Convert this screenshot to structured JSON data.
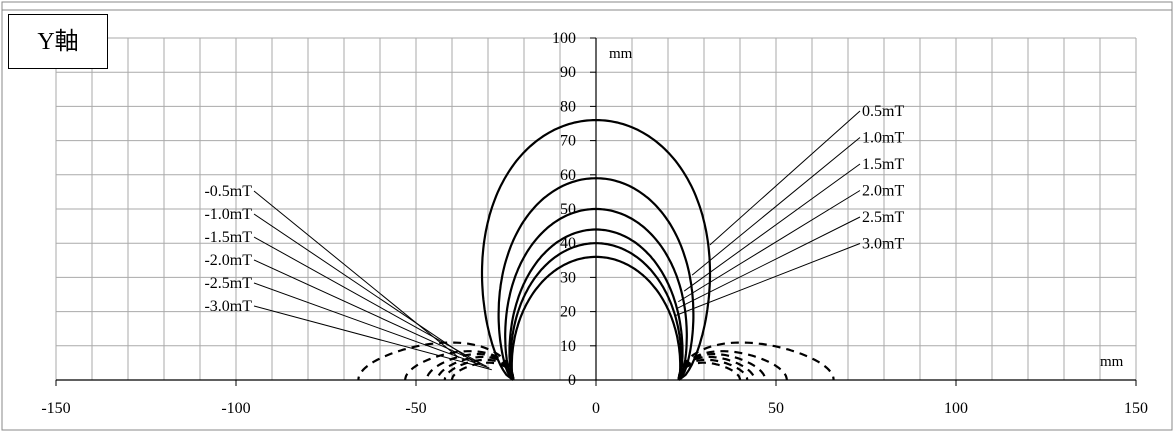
{
  "chart_data": {
    "type": "line",
    "axis_badge": "Y軸",
    "x_unit": "mm",
    "y_unit": "mm",
    "xlim": [
      -150,
      150
    ],
    "ylim": [
      0,
      100
    ],
    "x_ticks": [
      -150,
      -100,
      -50,
      0,
      50,
      100,
      150
    ],
    "y_ticks": [
      0,
      10,
      20,
      30,
      40,
      50,
      60,
      70,
      80,
      90,
      100
    ],
    "grid": true,
    "positive_labels": [
      "0.5mT",
      "1.0mT",
      "1.5mT",
      "2.0mT",
      "2.5mT",
      "3.0mT"
    ],
    "negative_labels": [
      "-0.5mT",
      "-1.0mT",
      "-1.5mT",
      "-2.0mT",
      "-2.5mT",
      "-3.0mT"
    ],
    "series": [
      {
        "name": "0.5mT",
        "style": "solid",
        "x_left": -23,
        "x_right": 23,
        "peak_y": 76,
        "half_width": 43
      },
      {
        "name": "1.0mT",
        "style": "solid",
        "x_left": -23,
        "x_right": 23,
        "peak_y": 59,
        "half_width": 34
      },
      {
        "name": "1.5mT",
        "style": "solid",
        "x_left": -23,
        "x_right": 23,
        "peak_y": 50,
        "half_width": 30
      },
      {
        "name": "2.0mT",
        "style": "solid",
        "x_left": -23,
        "x_right": 23,
        "peak_y": 44,
        "half_width": 27
      },
      {
        "name": "2.5mT",
        "style": "solid",
        "x_left": -23,
        "x_right": 23,
        "peak_y": 40,
        "half_width": 26
      },
      {
        "name": "3.0mT",
        "style": "solid",
        "x_left": -23,
        "x_right": 23,
        "peak_y": 36,
        "half_width": 25
      },
      {
        "name": "-0.5mT",
        "style": "dashed",
        "x_outer": 66,
        "x_inner": 23,
        "peak_y": 13
      },
      {
        "name": "-1.0mT",
        "style": "dashed",
        "x_outer": 53,
        "x_inner": 23,
        "peak_y": 10
      },
      {
        "name": "-1.5mT",
        "style": "dashed",
        "x_outer": 47,
        "x_inner": 23,
        "peak_y": 9
      },
      {
        "name": "-2.0mT",
        "style": "dashed",
        "x_outer": 44,
        "x_inner": 23,
        "peak_y": 8
      },
      {
        "name": "-2.5mT",
        "style": "dashed",
        "x_outer": 42,
        "x_inner": 23,
        "peak_y": 7
      },
      {
        "name": "-3.0mT",
        "style": "dashed",
        "x_outer": 40,
        "x_inner": 23,
        "peak_y": 6
      }
    ]
  }
}
